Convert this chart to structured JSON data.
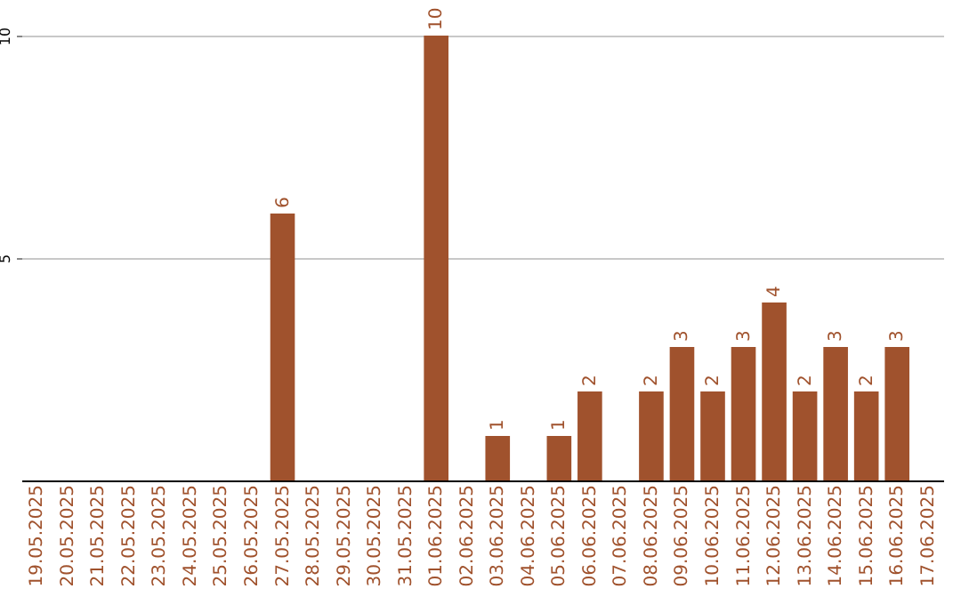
{
  "chart_data": {
    "type": "bar",
    "categories": [
      "19.05.2025",
      "20.05.2025",
      "21.05.2025",
      "22.05.2025",
      "23.05.2025",
      "24.05.2025",
      "25.05.2025",
      "26.05.2025",
      "27.05.2025",
      "28.05.2025",
      "29.05.2025",
      "30.05.2025",
      "31.05.2025",
      "01.06.2025",
      "02.06.2025",
      "03.06.2025",
      "04.06.2025",
      "05.06.2025",
      "06.06.2025",
      "07.06.2025",
      "08.06.2025",
      "09.06.2025",
      "10.06.2025",
      "11.06.2025",
      "12.06.2025",
      "13.06.2025",
      "14.06.2025",
      "15.06.2025",
      "16.06.2025",
      "17.06.2025"
    ],
    "values": [
      null,
      null,
      null,
      null,
      null,
      null,
      null,
      null,
      6,
      null,
      null,
      null,
      null,
      10,
      null,
      1,
      null,
      1,
      2,
      null,
      2,
      3,
      2,
      3,
      4,
      2,
      3,
      2,
      3,
      null
    ],
    "color": "#a0522d",
    "ylim": [
      0,
      10
    ],
    "yticks": [
      5,
      10
    ],
    "grid": "y",
    "data_labels": true
  }
}
